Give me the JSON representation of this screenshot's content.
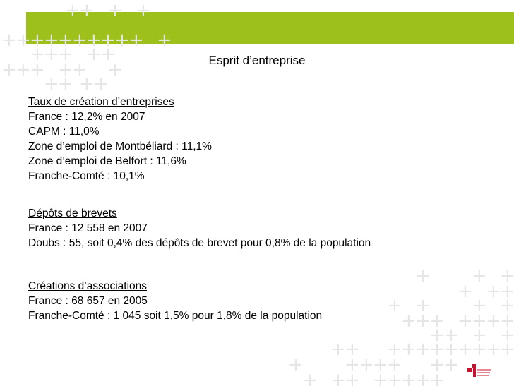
{
  "slide": {
    "title": "Esprit d’entreprise",
    "accent_color": "#9dc01b",
    "sections": [
      {
        "heading": "Taux de création d’entreprises",
        "lines": [
          "France : 12,2% en 2007",
          "CAPM : 11,0%",
          "Zone d’emploi de Montbéliard : 11,1%",
          "Zone d’emploi de Belfort : 11,6%",
          "Franche-Comté : 10,1%"
        ]
      },
      {
        "heading": "Dépôts de brevets",
        "lines": [
          "France : 12 558 en 2007",
          "Doubs : 55, soit 0,4% des dépôts de brevet pour 0,8% de la population"
        ]
      },
      {
        "heading": "Créations d’associations",
        "lines": [
          "France : 68 657 en 2005",
          "Franche-Comté : 1 045 soit 1,5% pour 1,8% de la population"
        ]
      }
    ]
  },
  "decor": {
    "plus_glyph": "+",
    "logo_icon": "organization-logo-icon"
  }
}
